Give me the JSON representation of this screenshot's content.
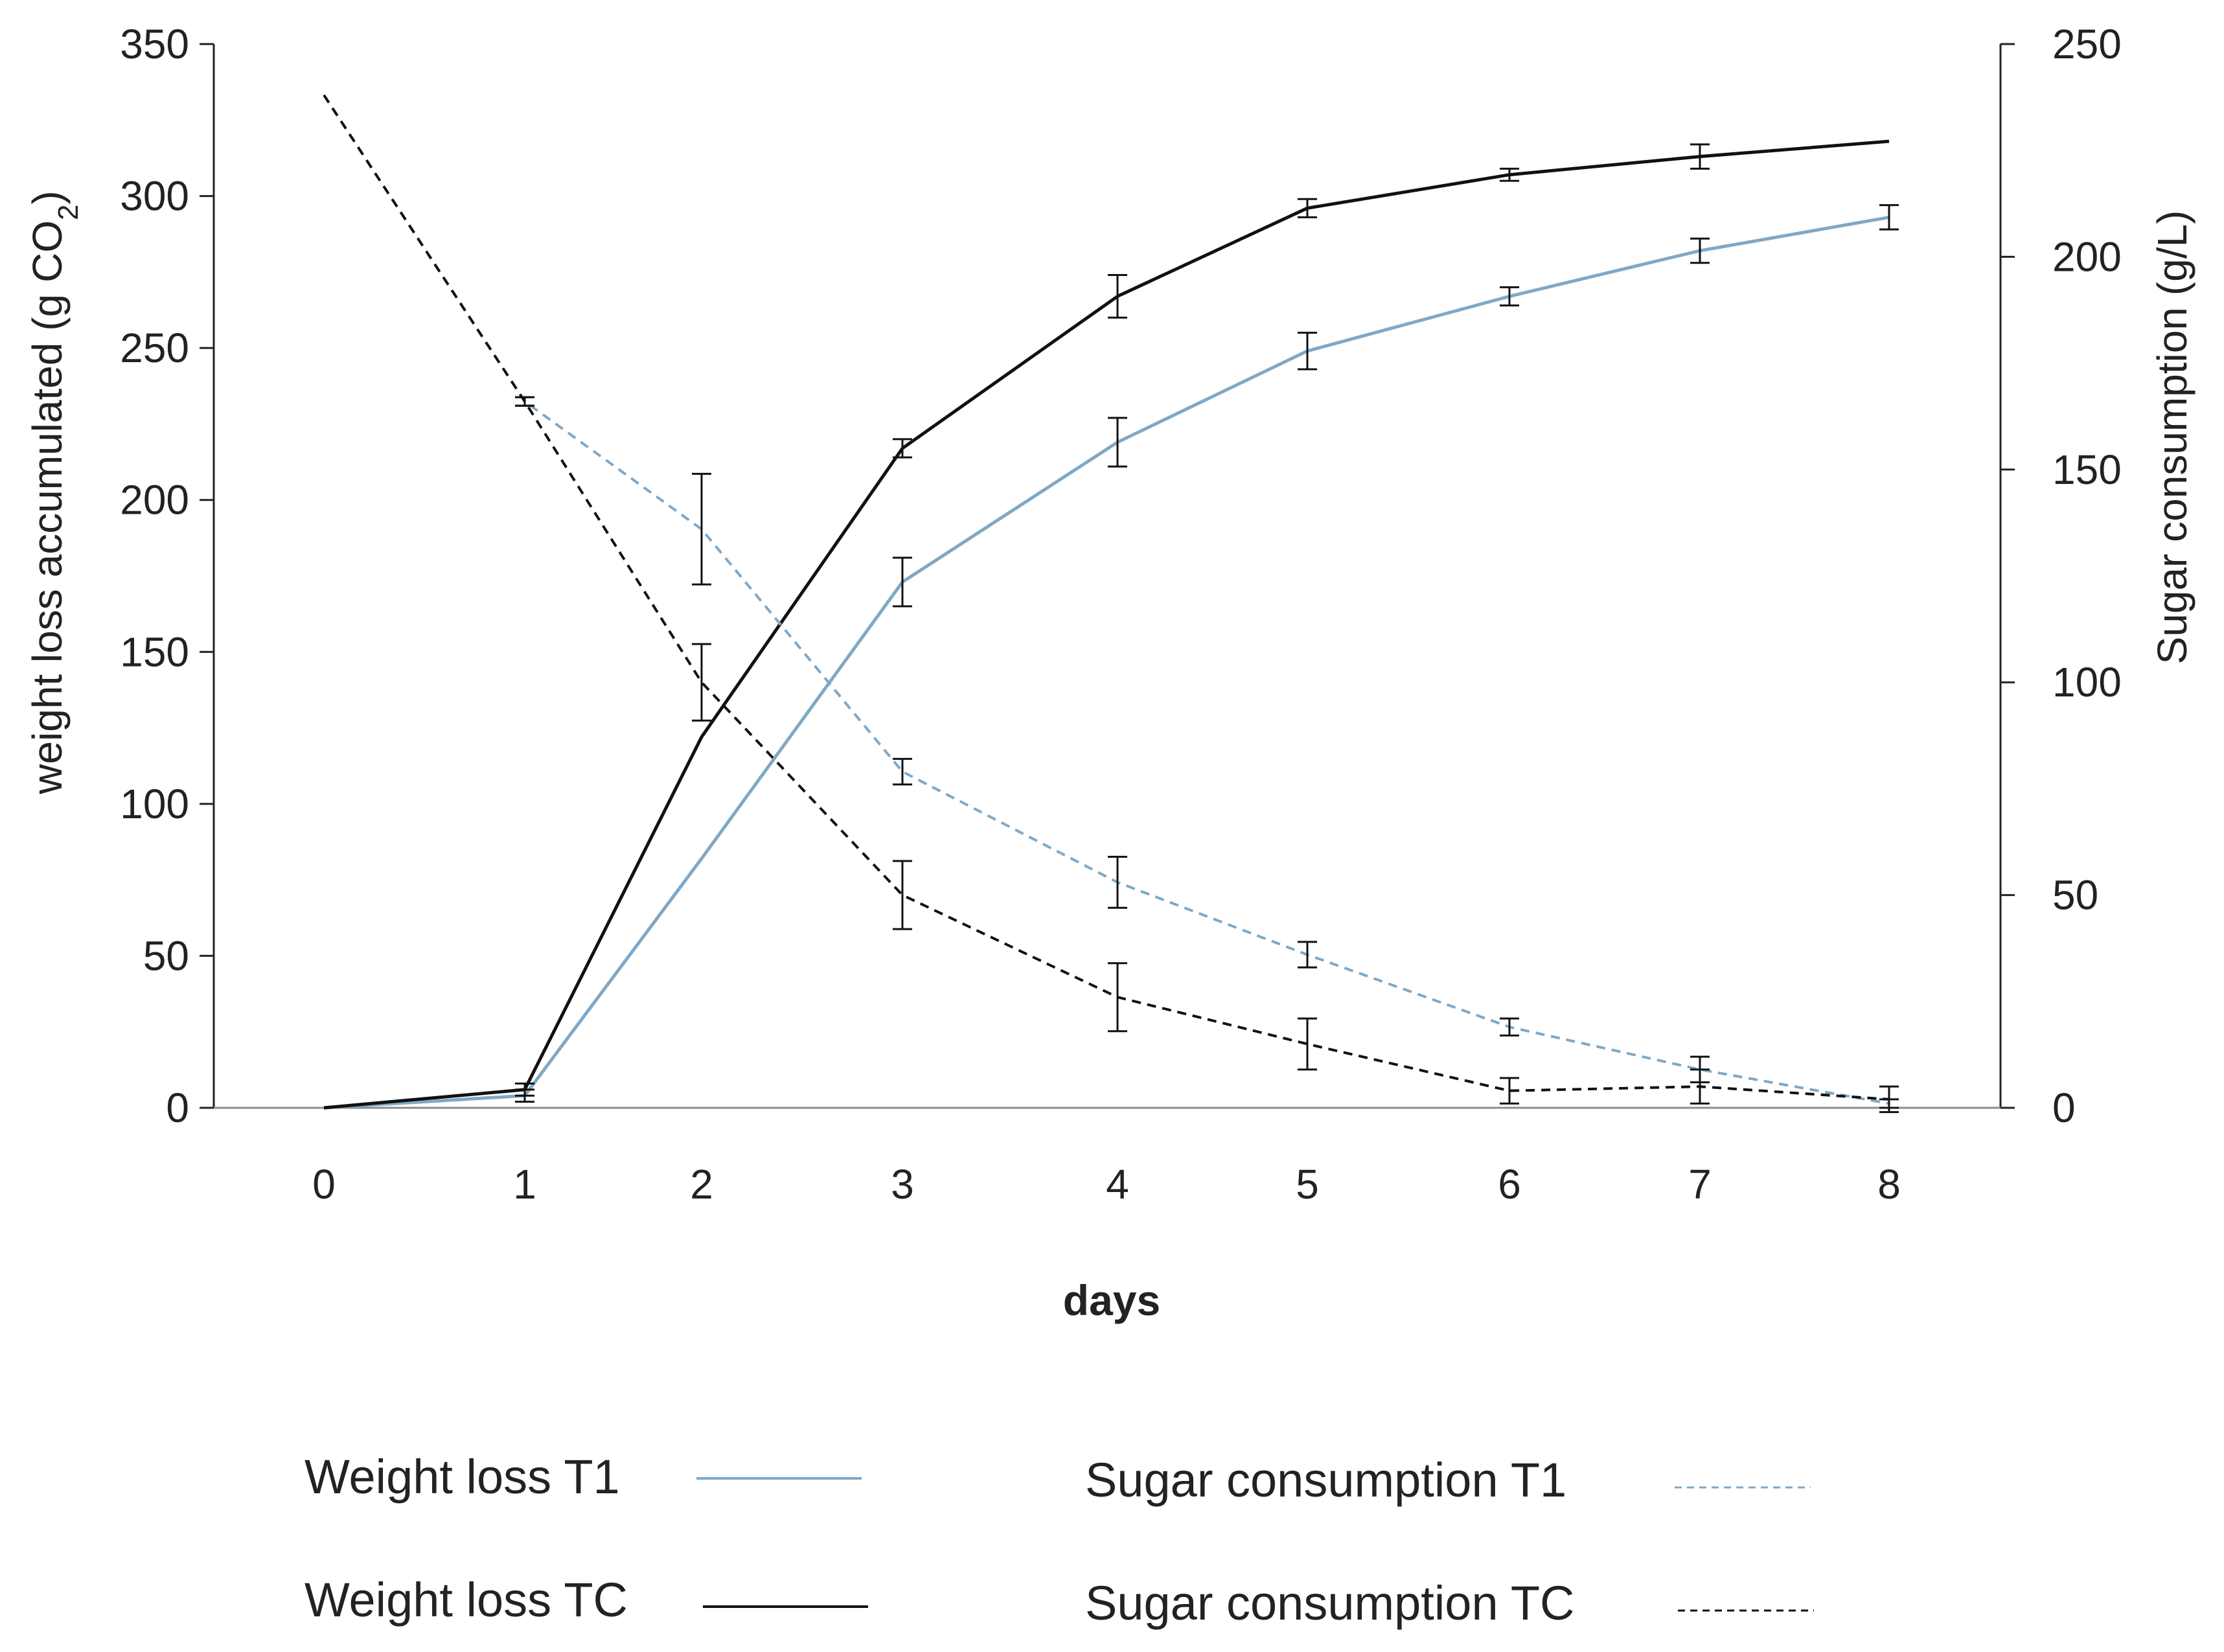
{
  "chart_data": {
    "type": "line",
    "title": "",
    "xlabel": "days",
    "ylabel_left_main": "weight loss  accumulated (g CO",
    "ylabel_left_sub": "2",
    "ylabel_left_end": ")",
    "ylabel_right": "Sugar consumption  (g/L)",
    "x": [
      0,
      1,
      2,
      3,
      4,
      5,
      6,
      7,
      8
    ],
    "x_tick_labels": [
      "0",
      "1",
      "2",
      "3",
      "4",
      "5",
      "6",
      "7",
      "8"
    ],
    "xlim": [
      0,
      8
    ],
    "ylim_left": [
      0,
      350
    ],
    "ylim_right": [
      0,
      250
    ],
    "y_ticks_left": [
      "0",
      "50",
      "100",
      "150",
      "200",
      "250",
      "300",
      "350"
    ],
    "y_ticks_right": [
      "0",
      "50",
      "100",
      "150",
      "200",
      "250"
    ],
    "grid": false,
    "legend_position": "bottom",
    "series": [
      {
        "name": "Weight loss T1",
        "axis": "left",
        "style": "solid",
        "color": "#7fa8c6",
        "values": [
          0,
          4,
          82,
          173,
          219,
          249,
          267,
          282,
          293
        ],
        "errors": [
          0,
          2,
          0,
          8,
          8,
          6,
          3,
          4,
          4
        ]
      },
      {
        "name": "Weight loss TC",
        "axis": "left",
        "style": "solid",
        "color": "#111111",
        "values": [
          0,
          6,
          122,
          217,
          267,
          296,
          307,
          313,
          318
        ],
        "errors": [
          0,
          2,
          0,
          3,
          7,
          3,
          2,
          4,
          0
        ]
      },
      {
        "name": "Sugar consumption T1",
        "axis": "right",
        "style": "dashed",
        "color": "#7fa8c6",
        "values": [
          238,
          166,
          136,
          79,
          53,
          36,
          19,
          9,
          1
        ],
        "errors": [
          0,
          1,
          13,
          3,
          6,
          3,
          2,
          3,
          1
        ]
      },
      {
        "name": "Sugar consumption TC",
        "axis": "right",
        "style": "dashed",
        "color": "#111111",
        "values": [
          238,
          166,
          100,
          50,
          26,
          15,
          4,
          5,
          2
        ],
        "errors": [
          0,
          1,
          9,
          8,
          8,
          6,
          3,
          4,
          3
        ]
      }
    ]
  }
}
